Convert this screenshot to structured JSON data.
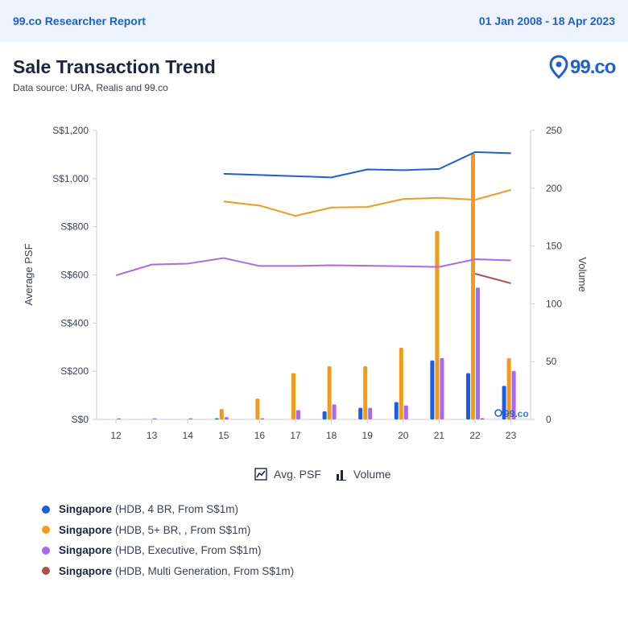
{
  "header": {
    "report_title": "99.co Researcher Report",
    "date_range": "01 Jan 2008 - 18 Apr 2023"
  },
  "page": {
    "title": "Sale Transaction Trend",
    "data_source": "Data source: URA, Realis and 99.co"
  },
  "logo": {
    "text": "99.co",
    "watermark": "99.co"
  },
  "colors": {
    "hdb_4br": "#1a5ee8",
    "hdb_5br": "#f39a1a",
    "hdb_exec": "#a968f5",
    "hdb_multigen": "#a9524a"
  },
  "legend": {
    "avg_psf": "Avg. PSF",
    "volume": "Volume"
  },
  "series_list": [
    {
      "name": "Singapore",
      "detail": "(HDB, 4 BR, From S$1m)",
      "color": "#1a5ee8"
    },
    {
      "name": "Singapore",
      "detail": "(HDB, 5+ BR, , From S$1m)",
      "color": "#f39a1a"
    },
    {
      "name": "Singapore",
      "detail": "(HDB, Executive, From S$1m)",
      "color": "#a968f5"
    },
    {
      "name": "Singapore",
      "detail": "(HDB, Multi Generation, From S$1m)",
      "color": "#a9524a"
    }
  ],
  "chart_data": {
    "type": "bar+line",
    "title": "Sale Transaction Trend",
    "xlabel": "",
    "ylabel_left": "Average PSF",
    "ylabel_right": "Volume",
    "categories": [
      "12",
      "13",
      "14",
      "15",
      "16",
      "17",
      "18",
      "19",
      "20",
      "21",
      "22",
      "23"
    ],
    "left_axis": {
      "min": 0,
      "max": 1200,
      "ticks": [
        0,
        200,
        400,
        600,
        800,
        1000,
        1200
      ],
      "tick_labels": [
        "S$0",
        "S$200",
        "S$400",
        "S$600",
        "S$800",
        "S$1,000",
        "S$1,200"
      ]
    },
    "right_axis": {
      "min": 0,
      "max": 250,
      "ticks": [
        0,
        50,
        100,
        150,
        200,
        250
      ],
      "tick_labels": [
        "0",
        "50",
        "100",
        "150",
        "200",
        "250"
      ]
    },
    "line_series": [
      {
        "name": "HDB, 4 BR, From S$1m",
        "color": "#1a5ee8",
        "values": [
          null,
          null,
          null,
          1020,
          1015,
          1010,
          1005,
          1038,
          1035,
          1040,
          1110,
          1105
        ]
      },
      {
        "name": "HDB, 5+ BR, From S$1m",
        "color": "#f39a1a",
        "values": [
          null,
          null,
          null,
          905,
          888,
          845,
          880,
          882,
          915,
          920,
          912,
          953
        ]
      },
      {
        "name": "HDB, Executive, From S$1m",
        "color": "#a968f5",
        "values": [
          598,
          643,
          647,
          670,
          637,
          637,
          640,
          638,
          636,
          633,
          665,
          660
        ]
      },
      {
        "name": "HDB, Multi Generation, From S$1m",
        "color": "#a9524a",
        "values": [
          null,
          null,
          null,
          null,
          null,
          null,
          null,
          null,
          null,
          null,
          605,
          565
        ]
      }
    ],
    "bar_series": [
      {
        "name": "HDB, 4 BR, From S$1m",
        "color": "#1a5ee8",
        "values": [
          0,
          0,
          0,
          1,
          0,
          0,
          7,
          10,
          15,
          51,
          40,
          29
        ]
      },
      {
        "name": "HDB, 5+ BR, From S$1m",
        "color": "#f39a1a",
        "values": [
          0,
          0,
          0,
          9,
          18,
          40,
          46,
          46,
          62,
          163,
          230,
          53
        ]
      },
      {
        "name": "HDB, Executive, From S$1m",
        "color": "#a968f5",
        "values": [
          1,
          1,
          1,
          2,
          1,
          8,
          13,
          10,
          12,
          53,
          114,
          42
        ]
      },
      {
        "name": "HDB, Multi Generation, From S$1m",
        "color": "#a9524a",
        "values": [
          0,
          0,
          0,
          0,
          0,
          0,
          0,
          0,
          0,
          0,
          1,
          0
        ]
      }
    ]
  }
}
